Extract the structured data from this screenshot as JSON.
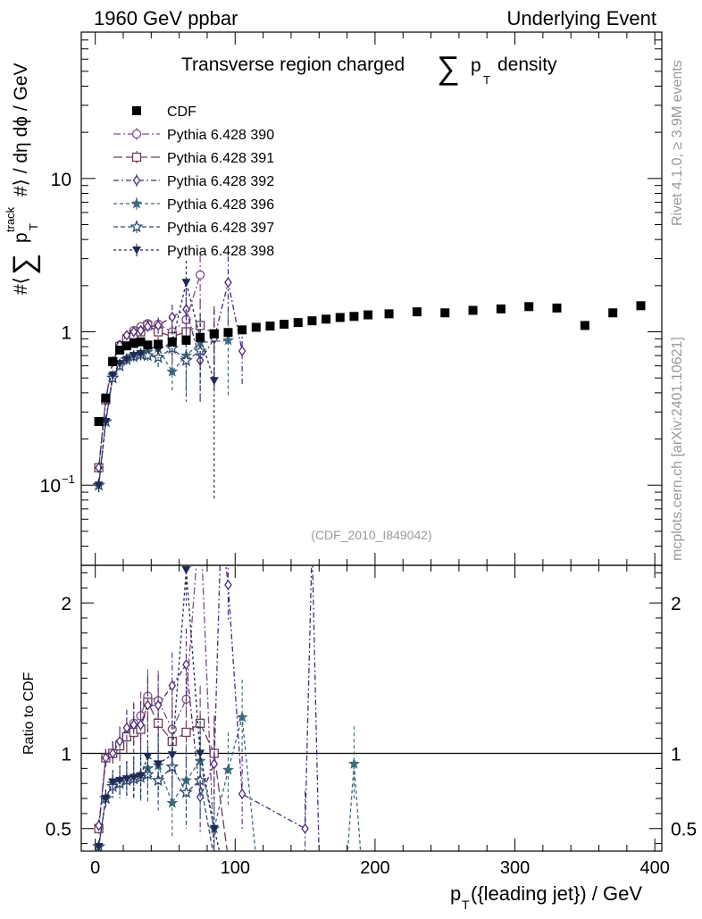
{
  "header": {
    "left": "1960 GeV ppbar",
    "right": "Underlying Event"
  },
  "side_labels": {
    "rivet": "Rivet 4.1.0, ≥ 3.9M events",
    "site": "mcplots.cern.ch [arXiv:2401.10621]"
  },
  "chart_data": [
    {
      "id": "main",
      "type": "scatter",
      "title_prefix": "Transverse region charged",
      "title_sum": "∑",
      "title_p": "p",
      "title_sub": "T",
      "title_suffix": "density",
      "watermark": "(CDF_2010_I849042)",
      "xlabel_p": "p",
      "xlabel_sub": "T",
      "xlabel_rest": "({leading jet}) / GeV",
      "ylabel_hash": "#⟨",
      "ylabel_sum": "∑",
      "ylabel_p": "p",
      "ylabel_sup": "track",
      "ylabel_sub": "T",
      "ylabel_rest": "#⟩ / dη dϕ / GeV",
      "xlim": [
        -10,
        405
      ],
      "ylim": [
        0.03,
        90
      ],
      "yscale": "log",
      "xticks": [
        "0",
        "100",
        "200",
        "300",
        "400"
      ],
      "yticks": [
        {
          "value": 0.1,
          "base": "10",
          "exp": "−1"
        },
        {
          "value": 1,
          "base": "1",
          "exp": ""
        },
        {
          "value": 10,
          "base": "10",
          "exp": ""
        }
      ],
      "legend_position": "top-left",
      "cdf": {
        "name": "CDF",
        "color": "#000000",
        "x": [
          2.5,
          7.5,
          12.5,
          17.5,
          22.5,
          27.5,
          32.5,
          37.5,
          45,
          55,
          65,
          75,
          85,
          95,
          105,
          115,
          125,
          135,
          145,
          155,
          165,
          175,
          185,
          195,
          210,
          230,
          250,
          270,
          290,
          310,
          330,
          350,
          370,
          390
        ],
        "y": [
          0.26,
          0.37,
          0.64,
          0.76,
          0.81,
          0.84,
          0.86,
          0.82,
          0.83,
          0.86,
          0.88,
          0.92,
          0.97,
          0.99,
          1.03,
          1.07,
          1.09,
          1.12,
          1.15,
          1.18,
          1.21,
          1.24,
          1.26,
          1.29,
          1.31,
          1.35,
          1.33,
          1.38,
          1.41,
          1.46,
          1.43,
          1.1,
          1.33,
          1.48
        ]
      },
      "series": [
        {
          "name": "Pythia 6.428 390",
          "color": "#7a4f8b",
          "marker": "circle-open",
          "dash": "8 3 2 3",
          "x": [
            2.5,
            7.5,
            12.5,
            17.5,
            22.5,
            27.5,
            32.5,
            37.5,
            45,
            55,
            65,
            75
          ],
          "y": [
            0.13,
            0.36,
            0.64,
            0.82,
            0.92,
            1.02,
            1.08,
            1.13,
            1.12,
            1.0,
            1.2,
            2.35
          ],
          "err": [
            0.01,
            0.02,
            0.03,
            0.04,
            0.05,
            0.06,
            0.07,
            0.08,
            0.12,
            0.2,
            0.4,
            0.8
          ]
        },
        {
          "name": "Pythia 6.428 391",
          "color": "#6d3d55",
          "marker": "square-open",
          "dash": "10 4",
          "x": [
            2.5,
            7.5,
            12.5,
            17.5,
            22.5,
            27.5,
            32.5,
            37.5,
            45,
            55,
            65,
            75,
            85
          ],
          "y": [
            0.13,
            0.36,
            0.64,
            0.8,
            0.9,
            0.96,
            1.0,
            1.1,
            1.0,
            0.93,
            1.0,
            1.1,
            0.97
          ],
          "err": [
            0.01,
            0.02,
            0.03,
            0.04,
            0.05,
            0.06,
            0.07,
            0.09,
            0.12,
            0.18,
            0.35,
            0.5,
            0.5
          ]
        },
        {
          "name": "Pythia 6.428 392",
          "color": "#4b2a7a",
          "marker": "diamond-open",
          "dash": "6 3 2 3",
          "x": [
            2.5,
            7.5,
            12.5,
            17.5,
            22.5,
            27.5,
            32.5,
            37.5,
            45,
            55,
            65,
            75,
            85,
            95,
            105
          ],
          "y": [
            0.13,
            0.36,
            0.64,
            0.82,
            0.95,
            1.0,
            1.02,
            1.08,
            1.1,
            1.25,
            1.4,
            0.65,
            0.9,
            2.1,
            0.75
          ],
          "err": [
            0.01,
            0.02,
            0.03,
            0.04,
            0.05,
            0.06,
            0.07,
            0.09,
            0.13,
            0.25,
            0.5,
            0.3,
            0.5,
            1.0,
            0.3
          ]
        },
        {
          "name": "Pythia 6.428 396",
          "color": "#3d6b7b",
          "marker": "star-filled",
          "dash": "4 3",
          "x": [
            2.5,
            7.5,
            12.5,
            17.5,
            22.5,
            27.5,
            32.5,
            37.5,
            45,
            55,
            65,
            75,
            95
          ],
          "y": [
            0.1,
            0.26,
            0.52,
            0.62,
            0.66,
            0.7,
            0.72,
            0.74,
            0.78,
            0.55,
            0.7,
            0.85,
            0.88
          ],
          "err": [
            0.01,
            0.02,
            0.03,
            0.04,
            0.05,
            0.05,
            0.06,
            0.07,
            0.1,
            0.15,
            0.3,
            0.4,
            0.5
          ]
        },
        {
          "name": "Pythia 6.428 397",
          "color": "#2e4a6f",
          "marker": "star-open",
          "dash": "5 3",
          "x": [
            2.5,
            7.5,
            12.5,
            17.5,
            22.5,
            27.5,
            32.5,
            37.5,
            45,
            55,
            65,
            75
          ],
          "y": [
            0.1,
            0.26,
            0.5,
            0.6,
            0.66,
            0.69,
            0.71,
            0.7,
            0.68,
            0.78,
            0.65,
            0.75
          ],
          "err": [
            0.01,
            0.02,
            0.03,
            0.04,
            0.05,
            0.05,
            0.06,
            0.07,
            0.1,
            0.15,
            0.3,
            0.4
          ]
        },
        {
          "name": "Pythia 6.428 398",
          "color": "#1f2a55",
          "marker": "triangle-down",
          "dash": "3 3",
          "x": [
            2.5,
            7.5,
            12.5,
            17.5,
            22.5,
            27.5,
            32.5,
            37.5,
            45,
            55,
            65,
            75,
            85
          ],
          "y": [
            0.1,
            0.26,
            0.52,
            0.62,
            0.66,
            0.7,
            0.72,
            0.8,
            0.77,
            0.85,
            2.1,
            0.92,
            0.48
          ],
          "err": [
            0.01,
            0.02,
            0.03,
            0.04,
            0.05,
            0.05,
            0.06,
            0.07,
            0.1,
            0.15,
            0.8,
            0.4,
            0.4
          ]
        }
      ]
    },
    {
      "id": "ratio",
      "type": "line",
      "ylabel": "Ratio to CDF",
      "xlim": [
        -10,
        405
      ],
      "ylim": [
        0.35,
        2.25
      ],
      "reference": 1,
      "yticks": [
        "0.5",
        "1",
        "2"
      ],
      "xticks": [
        "0",
        "100",
        "200",
        "300",
        "400"
      ],
      "series": [
        {
          "name": "Pythia 6.428 390",
          "x": [
            2.5,
            7.5,
            12.5,
            17.5,
            22.5,
            27.5,
            32.5,
            37.5,
            45,
            55,
            65,
            75,
            85
          ],
          "y": [
            0.5,
            0.97,
            1.0,
            1.07,
            1.12,
            1.2,
            1.25,
            1.38,
            1.35,
            1.16,
            1.36,
            2.6,
            0.3
          ]
        },
        {
          "name": "Pythia 6.428 391",
          "x": [
            2.5,
            7.5,
            12.5,
            17.5,
            22.5,
            27.5,
            32.5,
            37.5,
            45,
            55,
            65,
            75,
            85,
            95
          ],
          "y": [
            0.5,
            0.97,
            1.0,
            1.05,
            1.11,
            1.14,
            1.16,
            1.34,
            1.2,
            1.08,
            1.14,
            1.2,
            1.0,
            0.3
          ]
        },
        {
          "name": "Pythia 6.428 392",
          "x": [
            2.5,
            7.5,
            12.5,
            17.5,
            22.5,
            27.5,
            32.5,
            37.5,
            45,
            55,
            65,
            75,
            85,
            90,
            95,
            105,
            150,
            155,
            160
          ],
          "y": [
            0.52,
            0.97,
            1.0,
            1.08,
            1.17,
            1.19,
            1.19,
            1.32,
            1.32,
            1.45,
            1.59,
            0.71,
            0.93,
            2.5,
            2.12,
            0.73,
            0.5,
            2.4,
            0.3
          ]
        },
        {
          "name": "Pythia 6.428 396",
          "x": [
            2.5,
            7.5,
            12.5,
            17.5,
            22.5,
            27.5,
            32.5,
            37.5,
            45,
            55,
            65,
            75,
            85,
            95,
            105,
            115,
            180,
            185,
            190
          ],
          "y": [
            0.38,
            0.7,
            0.8,
            0.82,
            0.83,
            0.84,
            0.86,
            0.9,
            0.92,
            0.67,
            0.82,
            0.95,
            0.5,
            0.89,
            1.24,
            0.3,
            0.3,
            0.93,
            0.3
          ]
        },
        {
          "name": "Pythia 6.428 397",
          "x": [
            2.5,
            7.5,
            12.5,
            17.5,
            22.5,
            27.5,
            32.5,
            37.5,
            45,
            55,
            65,
            75,
            85
          ],
          "y": [
            0.38,
            0.7,
            0.78,
            0.8,
            0.82,
            0.83,
            0.84,
            0.86,
            0.82,
            0.91,
            0.74,
            0.82,
            0.3
          ]
        },
        {
          "name": "Pythia 6.428 398",
          "x": [
            2.5,
            7.5,
            12.5,
            17.5,
            22.5,
            27.5,
            32.5,
            37.5,
            45,
            55,
            65,
            75,
            85,
            90
          ],
          "y": [
            0.38,
            0.7,
            0.81,
            0.82,
            0.83,
            0.84,
            0.85,
            0.98,
            0.93,
            0.99,
            2.22,
            1.0,
            0.5,
            0.3
          ]
        }
      ]
    }
  ]
}
